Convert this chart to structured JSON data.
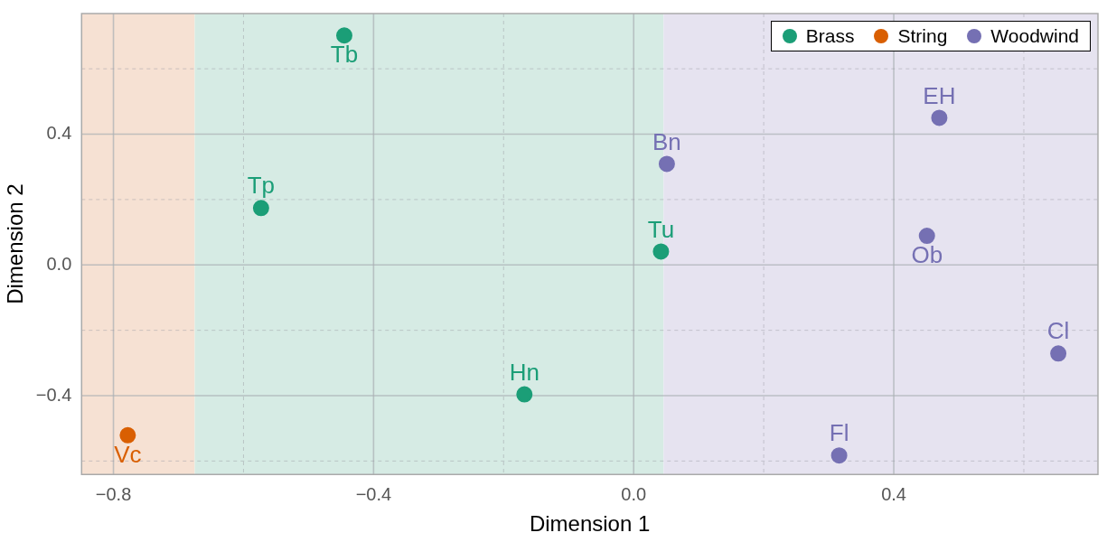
{
  "chart_data": {
    "type": "scatter",
    "xlabel": "Dimension 1",
    "ylabel": "Dimension 2",
    "xlim": [
      -0.849,
      0.714
    ],
    "ylim": [
      -0.641,
      0.769
    ],
    "xticks": [
      {
        "value": -0.8,
        "label": "−0.8"
      },
      {
        "value": -0.6,
        "label": null
      },
      {
        "value": -0.4,
        "label": "−0.4"
      },
      {
        "value": -0.2,
        "label": null
      },
      {
        "value": 0,
        "label": "0.0"
      },
      {
        "value": 0.2,
        "label": null
      },
      {
        "value": 0.4,
        "label": "0.4"
      },
      {
        "value": 0.6,
        "label": null
      }
    ],
    "yticks": [
      {
        "value": -0.6,
        "label": null
      },
      {
        "value": -0.4,
        "label": "−0.4"
      },
      {
        "value": -0.2,
        "label": null
      },
      {
        "value": 0,
        "label": "0.0"
      },
      {
        "value": 0.2,
        "label": null
      },
      {
        "value": 0.4,
        "label": "0.4"
      },
      {
        "value": 0.6,
        "label": null
      }
    ],
    "grid": true,
    "legend": "top right",
    "marker": "circle",
    "bands": [
      {
        "axis": "x",
        "from": -0.849,
        "to": -0.675,
        "color": "#f6e1d3"
      },
      {
        "axis": "x",
        "from": -0.675,
        "to": 0.046,
        "color": "#d6ebe4"
      },
      {
        "axis": "x",
        "from": 0.046,
        "to": 0.714,
        "color": "#e6e3f0"
      }
    ],
    "series": [
      {
        "name": "Brass",
        "color": "#1b9e77",
        "x": [
          -0.445,
          -0.573,
          0.042,
          -0.168
        ],
        "values": [
          0.702,
          0.174,
          0.041,
          -0.396
        ]
      },
      {
        "name": "String",
        "color": "#d95f02",
        "x": [
          -0.778
        ],
        "values": [
          -0.521
        ]
      },
      {
        "name": "Woodwind",
        "color": "#7570b3",
        "x": [
          0.051,
          0.47,
          0.451,
          0.653,
          0.316
        ],
        "values": [
          0.309,
          0.45,
          0.089,
          -0.271,
          -0.583
        ]
      }
    ],
    "annotations": [
      {
        "text": "Tb",
        "x": -0.445,
        "y": 0.702
      },
      {
        "text": "Tp",
        "x": -0.573,
        "y": 0.174
      },
      {
        "text": "Tu",
        "x": 0.042,
        "y": 0.041
      },
      {
        "text": "Hn",
        "x": -0.168,
        "y": -0.396
      },
      {
        "text": "Vc",
        "x": -0.778,
        "y": -0.521
      },
      {
        "text": "Bn",
        "x": 0.051,
        "y": 0.309
      },
      {
        "text": "EH",
        "x": 0.47,
        "y": 0.45
      },
      {
        "text": "Ob",
        "x": 0.451,
        "y": 0.089
      },
      {
        "text": "Cl",
        "x": 0.653,
        "y": -0.271
      },
      {
        "text": "Fl",
        "x": 0.316,
        "y": -0.583
      }
    ]
  }
}
